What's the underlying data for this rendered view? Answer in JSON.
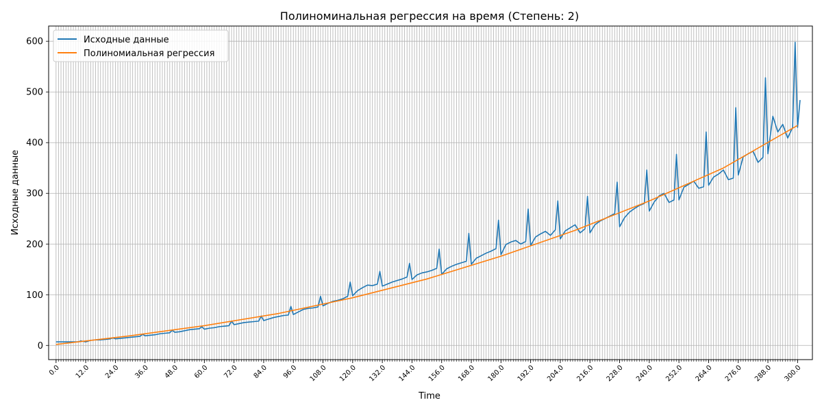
{
  "chart_data": {
    "type": "line",
    "title": "Полиноминальная регрессия на время (Степень: 2)",
    "xlabel": "Time",
    "ylabel": "Исходные данные",
    "xlim": [
      -3,
      306
    ],
    "ylim": [
      -28,
      630
    ],
    "grid": true,
    "legend_position": "top-left",
    "yticks": [
      0,
      100,
      200,
      300,
      400,
      500,
      600
    ],
    "xtick_major": [
      0,
      12,
      24,
      36,
      48,
      60,
      72,
      84,
      96,
      108,
      120,
      132,
      144,
      156,
      168,
      180,
      192,
      204,
      216,
      228,
      240,
      252,
      264,
      276,
      288,
      300
    ],
    "xtick_labels": [
      "0.0",
      "12.0",
      "24.0",
      "36.0",
      "48.0",
      "60.0",
      "72.0",
      "84.0",
      "96.0",
      "108.0",
      "120.0",
      "132.0",
      "144.0",
      "156.0",
      "168.0",
      "180.0",
      "192.0",
      "204.0",
      "216.0",
      "228.0",
      "240.0",
      "252.0",
      "264.0",
      "276.0",
      "288.0",
      "300.0"
    ],
    "xtick_minor_step": 1,
    "series": [
      {
        "name": "Исходные данные",
        "color": "#1f77b4",
        "x": [
          0,
          3,
          6,
          9,
          10,
          11,
          12,
          14,
          16,
          18,
          20,
          22,
          23,
          24,
          26,
          28,
          30,
          32,
          34,
          35,
          36,
          38,
          40,
          42,
          44,
          46,
          47,
          48,
          50,
          52,
          54,
          56,
          58,
          59,
          60,
          62,
          64,
          66,
          68,
          70,
          71,
          72,
          74,
          76,
          78,
          80,
          82,
          83,
          84,
          86,
          88,
          90,
          92,
          94,
          95,
          96,
          98,
          100,
          102,
          104,
          106,
          107,
          108,
          110,
          112,
          114,
          116,
          118,
          119,
          120,
          122,
          124,
          126,
          128,
          130,
          131,
          132,
          134,
          136,
          138,
          140,
          142,
          143,
          144,
          146,
          148,
          150,
          152,
          154,
          155,
          156,
          158,
          160,
          162,
          164,
          166,
          167,
          168,
          170,
          172,
          174,
          176,
          178,
          179,
          180,
          182,
          184,
          186,
          188,
          190,
          191,
          192,
          194,
          196,
          198,
          200,
          202,
          203,
          204,
          206,
          208,
          210,
          212,
          214,
          215,
          216,
          218,
          220,
          222,
          224,
          226,
          227,
          228,
          230,
          232,
          234,
          236,
          238,
          239,
          240,
          242,
          244,
          246,
          248,
          250,
          251,
          252,
          254,
          256,
          258,
          260,
          262,
          263,
          264,
          266,
          268,
          270,
          272,
          274,
          275,
          276,
          278,
          280,
          282,
          284,
          286,
          287,
          288,
          290,
          292,
          294,
          296,
          298,
          299,
          300,
          301
        ],
        "y": [
          7,
          7,
          7,
          7,
          9,
          8,
          7,
          10,
          11,
          11,
          12,
          13,
          15,
          13,
          14,
          15,
          16,
          17,
          18,
          22,
          19,
          20,
          21,
          23,
          24,
          25,
          30,
          26,
          27,
          29,
          31,
          32,
          33,
          37,
          32,
          34,
          35,
          37,
          38,
          39,
          48,
          41,
          43,
          45,
          46,
          47,
          48,
          58,
          49,
          52,
          55,
          57,
          59,
          60,
          77,
          61,
          66,
          71,
          73,
          74,
          76,
          97,
          78,
          83,
          87,
          89,
          92,
          97,
          125,
          98,
          108,
          114,
          119,
          118,
          121,
          146,
          117,
          121,
          125,
          128,
          131,
          135,
          162,
          130,
          139,
          143,
          145,
          148,
          152,
          190,
          140,
          151,
          156,
          160,
          163,
          166,
          221,
          160,
          172,
          177,
          182,
          186,
          191,
          247,
          179,
          199,
          204,
          207,
          200,
          205,
          269,
          197,
          214,
          220,
          225,
          217,
          228,
          285,
          210,
          226,
          232,
          238,
          222,
          230,
          294,
          222,
          238,
          245,
          250,
          255,
          260,
          322,
          234,
          252,
          263,
          270,
          276,
          280,
          346,
          265,
          283,
          295,
          300,
          282,
          287,
          377,
          287,
          312,
          318,
          324,
          310,
          313,
          421,
          316,
          332,
          338,
          346,
          327,
          330,
          469,
          336,
          372,
          378,
          383,
          361,
          371,
          528,
          378,
          452,
          421,
          436,
          409,
          430,
          598,
          430,
          484
        ]
      },
      {
        "name": "Полиномиальная регрессия",
        "color": "#ff7f0e",
        "x": [
          0,
          30,
          60,
          90,
          120,
          150,
          180,
          210,
          240,
          270,
          300
        ],
        "y": [
          2,
          19,
          39,
          63,
          94,
          131,
          176,
          227,
          285,
          350,
          434
        ]
      }
    ]
  }
}
